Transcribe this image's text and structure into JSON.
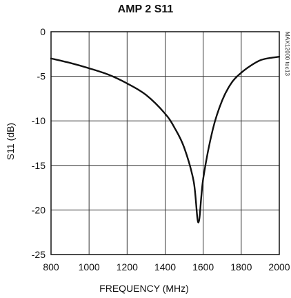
{
  "chart_data": {
    "type": "line",
    "title": "AMP 2 S11",
    "xlabel": "FREQUENCY (MHz)",
    "ylabel": "S11 (dB)",
    "side_label": "MAX12000 toc13",
    "xlim": [
      800,
      2000
    ],
    "ylim": [
      -25,
      0
    ],
    "x_ticks": [
      800,
      1000,
      1200,
      1400,
      1600,
      1800,
      2000
    ],
    "y_ticks": [
      0,
      -5,
      -10,
      -15,
      -20,
      -25
    ],
    "grid": true,
    "series": [
      {
        "values": [
          {
            "x": 800,
            "y": -3.0
          },
          {
            "x": 900,
            "y": -3.5
          },
          {
            "x": 1000,
            "y": -4.1
          },
          {
            "x": 1100,
            "y": -4.8
          },
          {
            "x": 1200,
            "y": -5.8
          },
          {
            "x": 1300,
            "y": -7.1
          },
          {
            "x": 1400,
            "y": -9.2
          },
          {
            "x": 1450,
            "y": -10.8
          },
          {
            "x": 1500,
            "y": -13.0
          },
          {
            "x": 1550,
            "y": -16.8
          },
          {
            "x": 1575,
            "y": -21.4
          },
          {
            "x": 1600,
            "y": -16.5
          },
          {
            "x": 1650,
            "y": -11.0
          },
          {
            "x": 1700,
            "y": -7.7
          },
          {
            "x": 1750,
            "y": -5.7
          },
          {
            "x": 1800,
            "y": -4.6
          },
          {
            "x": 1850,
            "y": -3.8
          },
          {
            "x": 1900,
            "y": -3.2
          },
          {
            "x": 1950,
            "y": -2.95
          },
          {
            "x": 2000,
            "y": -2.8
          }
        ]
      }
    ]
  }
}
